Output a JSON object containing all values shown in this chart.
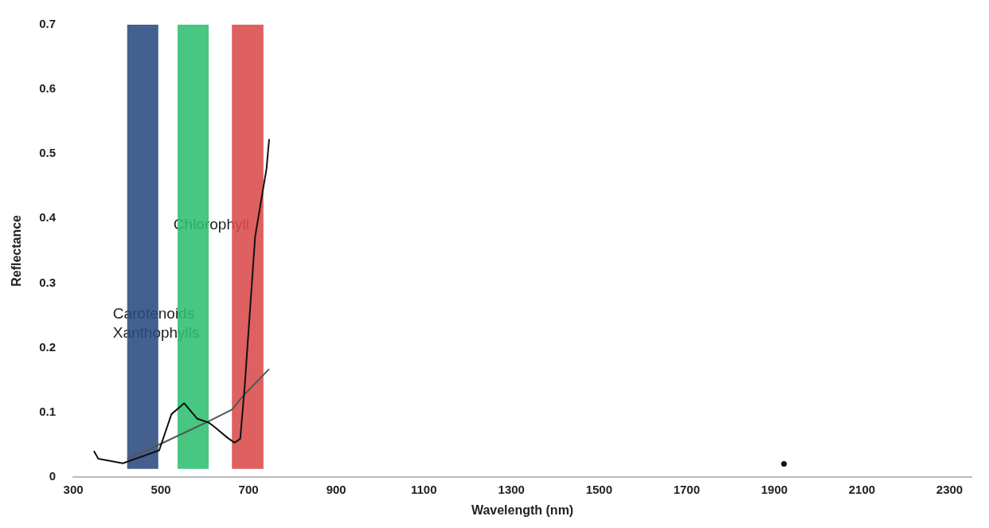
{
  "chart_data": {
    "type": "line",
    "xlabel": "Wavelength (nm)",
    "ylabel": "Reflectance",
    "xlim": [
      300,
      2350
    ],
    "xticks": [
      300,
      500,
      700,
      900,
      1100,
      1300,
      1500,
      1700,
      1900,
      2100,
      2300
    ],
    "ylim": [
      0,
      0.7
    ],
    "yticks": [
      0,
      0.1,
      0.2,
      0.3,
      0.4,
      0.5,
      0.6,
      0.7
    ],
    "series": [
      {
        "color": "#111111",
        "x": [
          347,
          357,
          413,
          496,
          524,
          553,
          583,
          609,
          621,
          653,
          668,
          681,
          691,
          715,
          741,
          747
        ],
        "values": [
          0.04,
          0.028,
          0.021,
          0.041,
          0.097,
          0.114,
          0.09,
          0.084,
          0.078,
          0.06,
          0.053,
          0.059,
          0.138,
          0.372,
          0.477,
          0.523
        ]
      },
      {
        "color": "#555555",
        "x": [
          423,
          496,
          606,
          662,
          691,
          747
        ],
        "values": [
          0.028,
          0.05,
          0.085,
          0.104,
          0.128,
          0.167
        ]
      },
      {
        "type": "scatter",
        "color": "#111111",
        "marker": "circle",
        "x": [
          1922
        ],
        "values": [
          0.02
        ]
      }
    ],
    "bands": [
      {
        "axis": "x",
        "from": 423,
        "to": 494,
        "color": "#2a4a80"
      },
      {
        "axis": "x",
        "from": 538,
        "to": 609,
        "color": "#2ebf6f"
      },
      {
        "axis": "x",
        "from": 662,
        "to": 734,
        "color": "#d94a4a"
      }
    ],
    "annotations": [
      {
        "text": "Chlorophyll",
        "x": 615,
        "y": 0.389
      },
      "Carotenoids",
      "Xanthophylls"
    ]
  }
}
